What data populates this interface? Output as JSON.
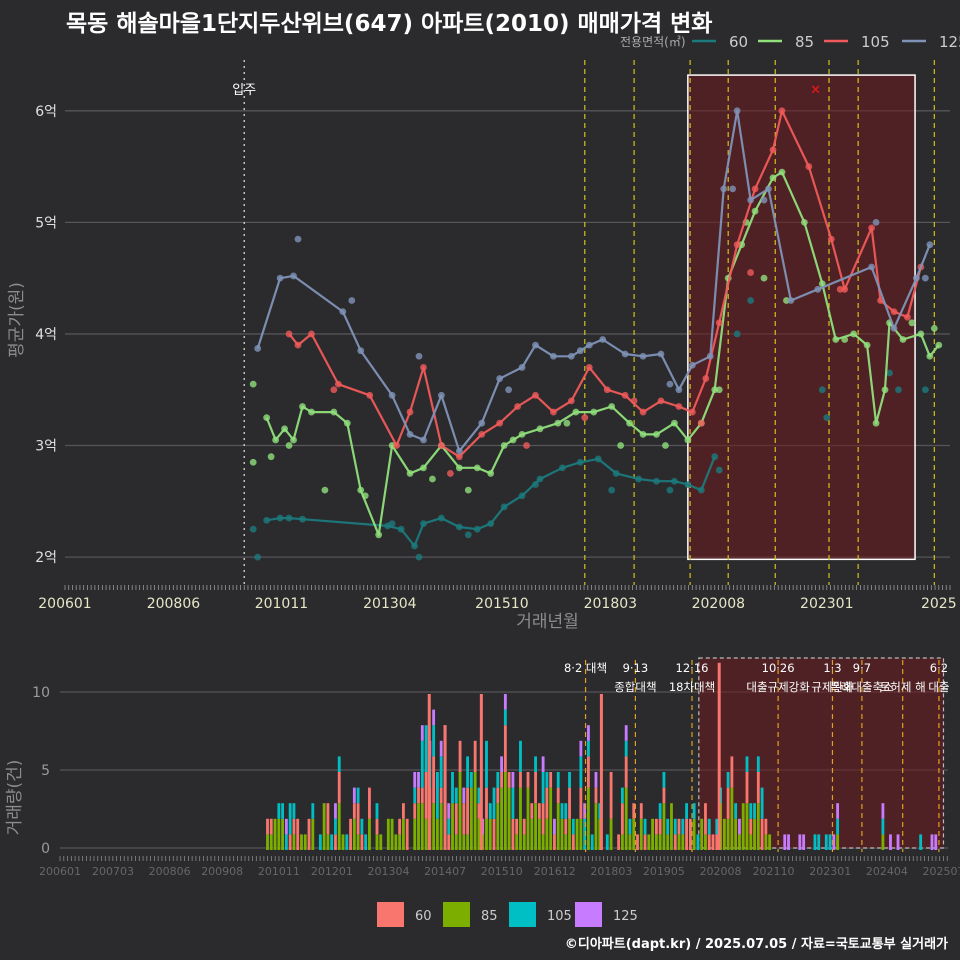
{
  "title": "목동 해솔마을1단지두산위브(647) 아파트(2010) 매매가격 변화",
  "footer": "©디아파트(dapt.kr) / 2025.07.05 / 자료=국토교통부 실거래가",
  "colors": {
    "60": "#1b7a7d",
    "85": "#90e07c",
    "105": "#f05a5a",
    "125": "#7f93b8",
    "bar60": "#f8766d",
    "bar85": "#7cae00",
    "bar105": "#00bfc4",
    "bar125": "#c77cff"
  },
  "chart_data": [
    {
      "type": "line",
      "xlabel": "거래년월",
      "ylabel": "평균가(원)",
      "legend_title": "전용면적(㎡)",
      "legend_position": "top-right",
      "x_ticks": [
        "200601",
        "200806",
        "201011",
        "201304",
        "201510",
        "201803",
        "202008",
        "202301",
        "2025"
      ],
      "y_ticks": [
        {
          "v": 2,
          "label": "2억"
        },
        {
          "v": 3,
          "label": "3억"
        },
        {
          "v": 4,
          "label": "4억"
        },
        {
          "v": 5,
          "label": "5억"
        },
        {
          "v": 6,
          "label": "6억"
        }
      ],
      "xlim": [
        2006.0,
        2025.75
      ],
      "ylim": [
        1.75,
        6.5
      ],
      "annotation_move_in": {
        "x": 2010.0,
        "label": "입주"
      },
      "highlight": {
        "x0": 2019.9,
        "x1": 2024.97,
        "y0": 1.98,
        "y1": 6.32
      },
      "policy_lines": [
        2017.6,
        2018.7,
        2019.95,
        2020.8,
        2021.85,
        2023.05,
        2023.7,
        2025.4
      ],
      "max_marker": {
        "x": 2022.75,
        "y": 6.2
      },
      "series": [
        {
          "name": "60",
          "points": [
            [
              2010.5,
              2.33
            ],
            [
              2010.8,
              2.35
            ],
            [
              2011.0,
              2.35
            ],
            [
              2011.3,
              2.34
            ],
            [
              2013.2,
              2.28
            ],
            [
              2013.5,
              2.25
            ],
            [
              2013.8,
              2.1
            ],
            [
              2014.0,
              2.3
            ],
            [
              2014.4,
              2.35
            ],
            [
              2014.8,
              2.27
            ],
            [
              2015.2,
              2.25
            ],
            [
              2015.5,
              2.3
            ],
            [
              2015.8,
              2.45
            ],
            [
              2016.2,
              2.55
            ],
            [
              2016.6,
              2.7
            ],
            [
              2017.1,
              2.8
            ],
            [
              2017.5,
              2.85
            ],
            [
              2017.9,
              2.88
            ],
            [
              2018.3,
              2.75
            ],
            [
              2018.8,
              2.7
            ],
            [
              2019.2,
              2.68
            ],
            [
              2019.6,
              2.68
            ],
            [
              2019.9,
              2.65
            ],
            [
              2020.2,
              2.6
            ],
            [
              2020.5,
              2.9
            ]
          ],
          "scatter": [
            [
              2010.3,
              2.0
            ],
            [
              2010.2,
              2.25
            ],
            [
              2013.3,
              2.3
            ],
            [
              2013.9,
              2.0
            ],
            [
              2015.0,
              2.2
            ],
            [
              2016.5,
              2.65
            ],
            [
              2018.2,
              2.6
            ],
            [
              2019.5,
              2.6
            ],
            [
              2020.6,
              2.78
            ],
            [
              2021.0,
              4.0
            ],
            [
              2021.3,
              4.3
            ],
            [
              2022.9,
              3.5
            ],
            [
              2023.0,
              3.25
            ],
            [
              2024.4,
              3.65
            ],
            [
              2024.6,
              3.5
            ],
            [
              2025.2,
              3.5
            ]
          ]
        },
        {
          "name": "85",
          "points": [
            [
              2010.5,
              3.25
            ],
            [
              2010.7,
              3.05
            ],
            [
              2010.9,
              3.15
            ],
            [
              2011.1,
              3.05
            ],
            [
              2011.3,
              3.35
            ],
            [
              2011.5,
              3.3
            ],
            [
              2012.0,
              3.3
            ],
            [
              2012.3,
              3.2
            ],
            [
              2012.6,
              2.6
            ],
            [
              2013.0,
              2.2
            ],
            [
              2013.3,
              3.0
            ],
            [
              2013.7,
              2.75
            ],
            [
              2014.0,
              2.8
            ],
            [
              2014.4,
              3.0
            ],
            [
              2014.8,
              2.8
            ],
            [
              2015.2,
              2.8
            ],
            [
              2015.5,
              2.75
            ],
            [
              2015.8,
              3.0
            ],
            [
              2016.2,
              3.1
            ],
            [
              2016.6,
              3.15
            ],
            [
              2017.0,
              3.2
            ],
            [
              2017.4,
              3.3
            ],
            [
              2017.8,
              3.3
            ],
            [
              2018.2,
              3.35
            ],
            [
              2018.6,
              3.2
            ],
            [
              2018.9,
              3.1
            ],
            [
              2019.2,
              3.1
            ],
            [
              2019.6,
              3.2
            ],
            [
              2019.9,
              3.05
            ],
            [
              2020.2,
              3.2
            ],
            [
              2020.5,
              3.5
            ],
            [
              2020.8,
              4.5
            ],
            [
              2021.1,
              4.8
            ],
            [
              2021.4,
              5.1
            ],
            [
              2021.8,
              5.4
            ],
            [
              2022.0,
              5.45
            ],
            [
              2022.5,
              5.0
            ],
            [
              2022.9,
              4.45
            ],
            [
              2023.2,
              3.95
            ],
            [
              2023.6,
              4.0
            ],
            [
              2023.9,
              3.9
            ],
            [
              2024.1,
              3.2
            ],
            [
              2024.3,
              3.5
            ],
            [
              2024.4,
              4.1
            ],
            [
              2024.7,
              3.95
            ],
            [
              2025.1,
              4.0
            ],
            [
              2025.3,
              3.8
            ],
            [
              2025.5,
              3.9
            ]
          ],
          "scatter": [
            [
              2010.2,
              3.55
            ],
            [
              2010.2,
              2.85
            ],
            [
              2010.6,
              2.9
            ],
            [
              2011.0,
              3.0
            ],
            [
              2011.8,
              2.6
            ],
            [
              2012.7,
              2.55
            ],
            [
              2014.2,
              2.7
            ],
            [
              2015.0,
              2.6
            ],
            [
              2016.0,
              3.05
            ],
            [
              2017.2,
              3.2
            ],
            [
              2018.4,
              3.0
            ],
            [
              2019.4,
              3.0
            ],
            [
              2020.6,
              3.5
            ],
            [
              2021.2,
              5.0
            ],
            [
              2021.6,
              4.5
            ],
            [
              2022.1,
              4.3
            ],
            [
              2023.4,
              3.95
            ],
            [
              2024.9,
              4.1
            ],
            [
              2025.4,
              4.05
            ]
          ]
        },
        {
          "name": "105",
          "points": [
            [
              2011.0,
              4.0
            ],
            [
              2011.2,
              3.9
            ],
            [
              2011.5,
              4.0
            ],
            [
              2012.1,
              3.55
            ],
            [
              2012.8,
              3.45
            ],
            [
              2013.4,
              3.0
            ],
            [
              2013.7,
              3.3
            ],
            [
              2014.0,
              3.7
            ],
            [
              2014.4,
              3.0
            ],
            [
              2014.8,
              2.9
            ],
            [
              2015.3,
              3.1
            ],
            [
              2015.7,
              3.2
            ],
            [
              2016.1,
              3.35
            ],
            [
              2016.5,
              3.45
            ],
            [
              2016.9,
              3.3
            ],
            [
              2017.3,
              3.4
            ],
            [
              2017.7,
              3.7
            ],
            [
              2018.1,
              3.5
            ],
            [
              2018.5,
              3.45
            ],
            [
              2018.9,
              3.3
            ],
            [
              2019.3,
              3.4
            ],
            [
              2019.7,
              3.35
            ],
            [
              2020.0,
              3.3
            ],
            [
              2020.3,
              3.6
            ],
            [
              2020.6,
              4.1
            ],
            [
              2021.0,
              4.8
            ],
            [
              2021.4,
              5.3
            ],
            [
              2021.8,
              5.65
            ],
            [
              2022.0,
              6.0
            ],
            [
              2022.6,
              5.5
            ],
            [
              2023.1,
              4.85
            ],
            [
              2023.4,
              4.4
            ],
            [
              2024.0,
              4.95
            ],
            [
              2024.2,
              4.3
            ],
            [
              2024.5,
              4.2
            ],
            [
              2024.8,
              4.15
            ],
            [
              2025.1,
              4.6
            ]
          ],
          "scatter": [
            [
              2012.0,
              3.5
            ],
            [
              2014.6,
              2.75
            ],
            [
              2016.3,
              3.0
            ],
            [
              2017.6,
              3.25
            ],
            [
              2018.7,
              3.4
            ],
            [
              2020.2,
              3.2
            ],
            [
              2021.3,
              4.55
            ],
            [
              2023.3,
              4.4
            ]
          ]
        },
        {
          "name": "125",
          "points": [
            [
              2010.3,
              3.87
            ],
            [
              2010.8,
              4.5
            ],
            [
              2011.1,
              4.52
            ],
            [
              2012.2,
              4.2
            ],
            [
              2012.6,
              3.85
            ],
            [
              2013.3,
              3.45
            ],
            [
              2013.7,
              3.1
            ],
            [
              2014.0,
              3.05
            ],
            [
              2014.4,
              3.45
            ],
            [
              2014.8,
              2.95
            ],
            [
              2015.3,
              3.2
            ],
            [
              2015.7,
              3.6
            ],
            [
              2016.2,
              3.7
            ],
            [
              2016.5,
              3.9
            ],
            [
              2016.9,
              3.8
            ],
            [
              2017.3,
              3.8
            ],
            [
              2017.7,
              3.9
            ],
            [
              2018.0,
              3.95
            ],
            [
              2018.5,
              3.82
            ],
            [
              2018.9,
              3.8
            ],
            [
              2019.3,
              3.82
            ],
            [
              2019.7,
              3.5
            ],
            [
              2020.0,
              3.72
            ],
            [
              2020.4,
              3.8
            ],
            [
              2020.7,
              5.3
            ],
            [
              2021.0,
              6.0
            ],
            [
              2021.3,
              5.2
            ],
            [
              2021.7,
              5.3
            ],
            [
              2022.2,
              4.3
            ],
            [
              2022.8,
              4.4
            ],
            [
              2024.0,
              4.6
            ],
            [
              2024.5,
              4.05
            ],
            [
              2025.0,
              4.5
            ],
            [
              2025.3,
              4.8
            ]
          ],
          "scatter": [
            [
              2011.2,
              4.85
            ],
            [
              2012.4,
              4.3
            ],
            [
              2013.9,
              3.8
            ],
            [
              2015.9,
              3.5
            ],
            [
              2017.5,
              3.85
            ],
            [
              2019.5,
              3.55
            ],
            [
              2020.9,
              5.3
            ],
            [
              2021.6,
              5.2
            ],
            [
              2024.1,
              5.0
            ],
            [
              2025.2,
              4.5
            ]
          ]
        }
      ]
    },
    {
      "type": "bar",
      "stacked": true,
      "ylabel": "거래량(건)",
      "x_ticks": [
        "200601",
        "200703",
        "200806",
        "200908",
        "201011",
        "201201",
        "201304",
        "201407",
        "201510",
        "201612",
        "201803",
        "201905",
        "202008",
        "202110",
        "202301",
        "202404",
        "202507"
      ],
      "y_ticks": [
        0,
        5,
        10
      ],
      "ylim": [
        0,
        12.5
      ],
      "policies": [
        {
          "x": 2017.6,
          "line1": "8·2 대책",
          "line2": ""
        },
        {
          "x": 2018.7,
          "line1": "9·13",
          "line2": "종합대책"
        },
        {
          "x": 2019.95,
          "line1": "12·16",
          "line2": "18차대책"
        },
        {
          "x": 2021.85,
          "line1": "10·26",
          "line2": "대출규제강화"
        },
        {
          "x": 2023.05,
          "line1": "1·3",
          "line2": "규제완화"
        },
        {
          "x": 2023.7,
          "line1": "9·7",
          "line2": "특례대출축소"
        },
        {
          "x": 2024.6,
          "line1": "",
          "line2": "토허제 해"
        },
        {
          "x": 2025.4,
          "line1": "6·2",
          "line2": "대출"
        }
      ],
      "legend": [
        "60",
        "85",
        "105",
        "125"
      ]
    }
  ]
}
